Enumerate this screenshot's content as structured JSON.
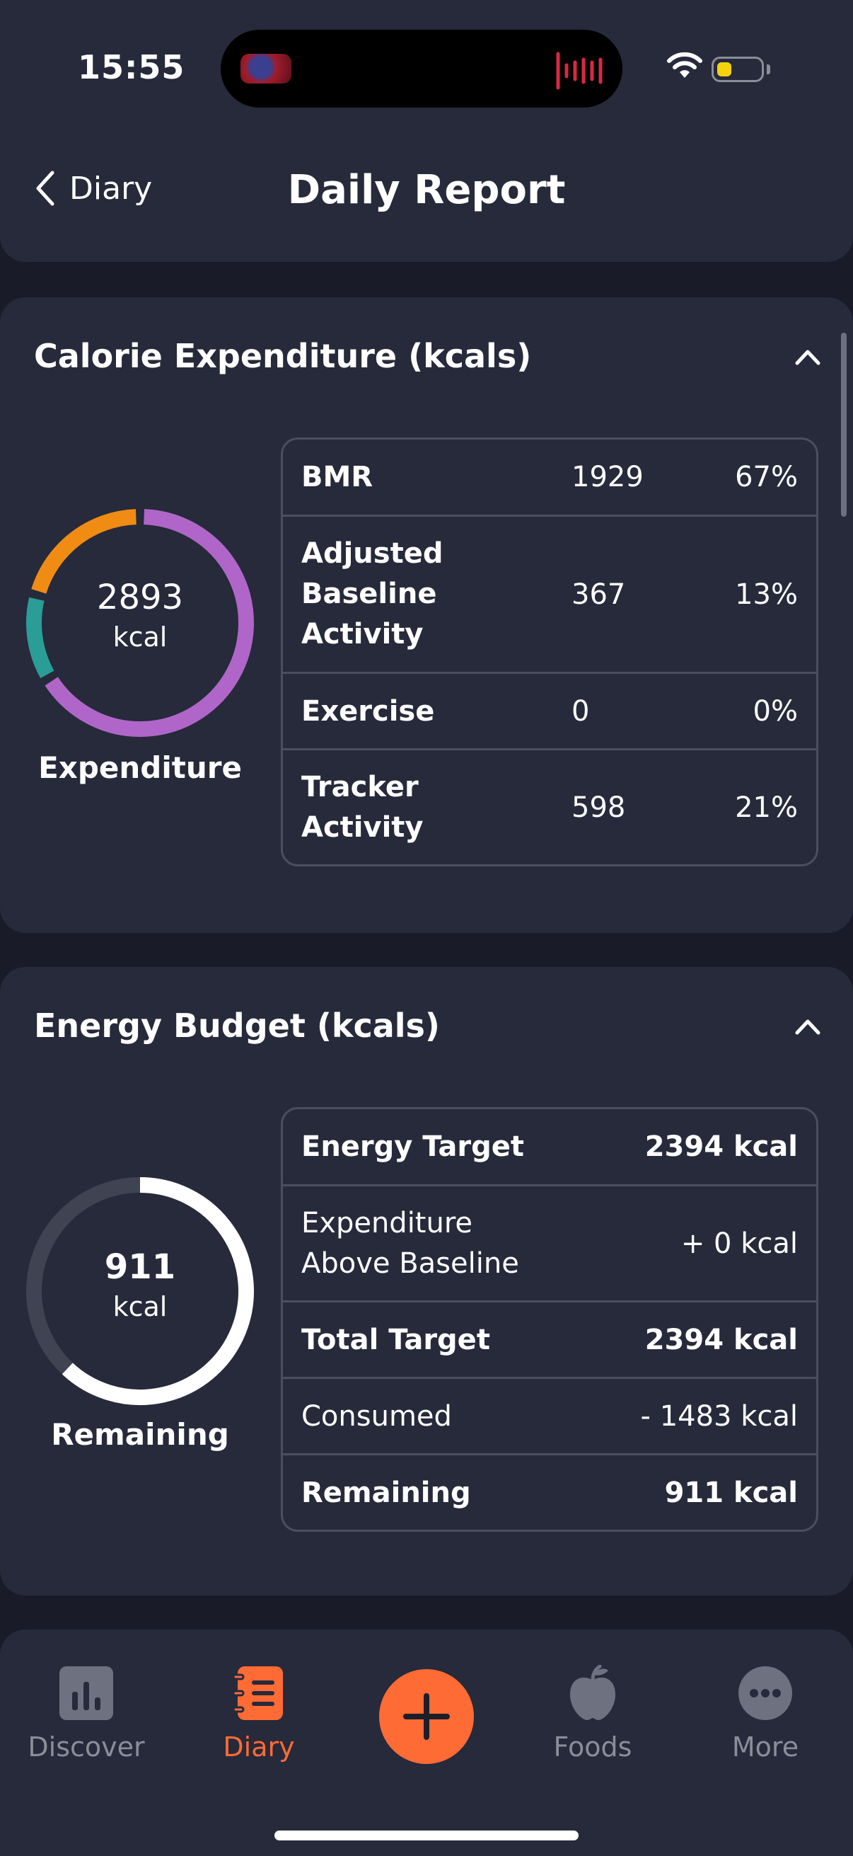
{
  "status": {
    "time": "15:55"
  },
  "header": {
    "back_label": "Diary",
    "title": "Daily Report"
  },
  "calorie_expenditure": {
    "title": "Calorie Expenditure (kcals)",
    "donut_value": "2893",
    "donut_unit": "kcal",
    "donut_caption": "Expenditure",
    "rows": [
      {
        "label": "BMR",
        "value": "1929",
        "percent": "67%",
        "color": "#b066c8",
        "share": 0.67
      },
      {
        "label": "Adjusted Baseline Activity",
        "value": "367",
        "percent": "13%",
        "color": "#2a9d96",
        "share": 0.13
      },
      {
        "label": "Exercise",
        "value": "0",
        "percent": "0%",
        "color": "#f08c14",
        "share": 0.0
      },
      {
        "label": "Tracker Activity",
        "value": "598",
        "percent": "21%",
        "color": "#f08c14",
        "share": 0.21
      }
    ]
  },
  "energy_budget": {
    "title": "Energy Budget (kcals)",
    "donut_value": "911",
    "donut_unit": "kcal",
    "donut_caption": "Remaining",
    "remaining_fraction": 0.62,
    "rows": [
      {
        "label": "Energy Target",
        "value": "2394 kcal"
      },
      {
        "label": "Expenditure Above Baseline",
        "value": "+ 0 kcal"
      },
      {
        "label": "Total Target",
        "value": "2394 kcal"
      },
      {
        "label": "Consumed",
        "value": "- 1483 kcal"
      },
      {
        "label": "Remaining",
        "value": "911 kcal"
      }
    ]
  },
  "tabbar": {
    "tabs": [
      {
        "label": "Discover",
        "icon": "bar-chart-icon"
      },
      {
        "label": "Diary",
        "icon": "notebook-icon"
      },
      {
        "label": "Foods",
        "icon": "apple-icon"
      },
      {
        "label": "More",
        "icon": "more-dots-icon"
      }
    ],
    "add_icon": "plus-icon"
  },
  "colors": {
    "accent": "#ff6b35",
    "card": "#262a3a",
    "background": "#191c28"
  }
}
